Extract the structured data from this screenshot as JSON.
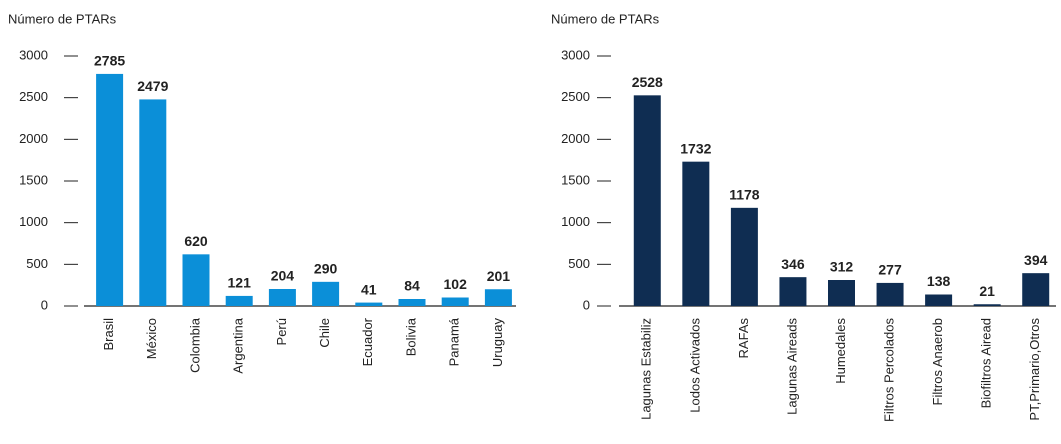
{
  "chart_data": [
    {
      "type": "bar",
      "y_label": "Número de PTARs",
      "categories": [
        "Brasil",
        "México",
        "Colombia",
        "Argentina",
        "Perú",
        "Chile",
        "Ecuador",
        "Bolivia",
        "Panamá",
        "Uruguay"
      ],
      "values": [
        2785,
        2479,
        620,
        121,
        204,
        290,
        41,
        84,
        102,
        201
      ],
      "color": "#0b8fd8",
      "ylim": [
        0,
        3000
      ],
      "yticks": [
        0,
        500,
        1000,
        1500,
        2000,
        2500,
        3000
      ],
      "grid": false
    },
    {
      "type": "bar",
      "y_label": "Número de PTARs",
      "categories": [
        "Lagunas Estabiliz",
        "Lodos Activados",
        "RAFAs",
        "Lagunas Aireads",
        "Humedales",
        "Filtros Percolados",
        "Filtros Anaerob",
        "Biofiltros Airead",
        "PT,Primario,Otros"
      ],
      "values": [
        2528,
        1732,
        1178,
        346,
        312,
        277,
        138,
        21,
        394
      ],
      "color": "#0f2d52",
      "ylim": [
        0,
        3000
      ],
      "yticks": [
        0,
        500,
        1000,
        1500,
        2000,
        2500,
        3000
      ],
      "grid": false
    }
  ]
}
